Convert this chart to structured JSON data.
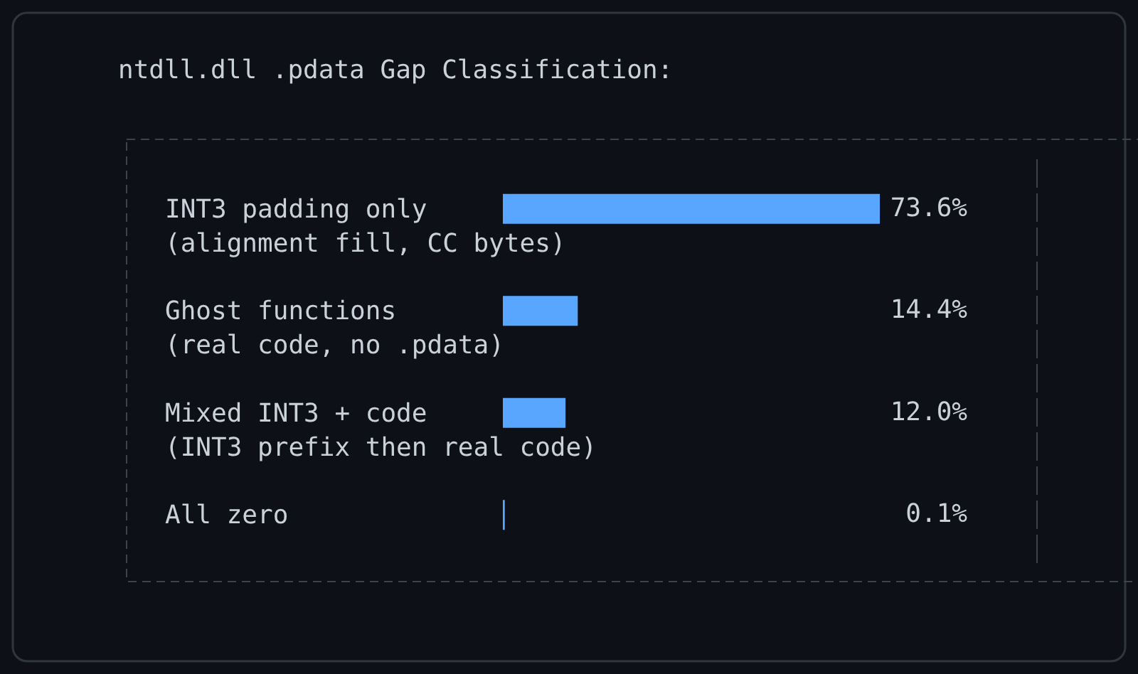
{
  "chart_data": {
    "type": "bar",
    "orientation": "horizontal",
    "title": "ntdll.dll .pdata Gap Classification:",
    "categories": [
      "INT3 padding only\n(alignment fill, CC bytes)",
      "Ghost functions\n(real code, no .pdata)",
      "Mixed INT3 + code\n(INT3 prefix then real code)",
      "All zero"
    ],
    "values": [
      73.6,
      14.4,
      12.0,
      0.1
    ],
    "value_labels": [
      "73.6%",
      "14.4%",
      "12.0%",
      "0.1%"
    ],
    "color": "#58a6ff"
  }
}
